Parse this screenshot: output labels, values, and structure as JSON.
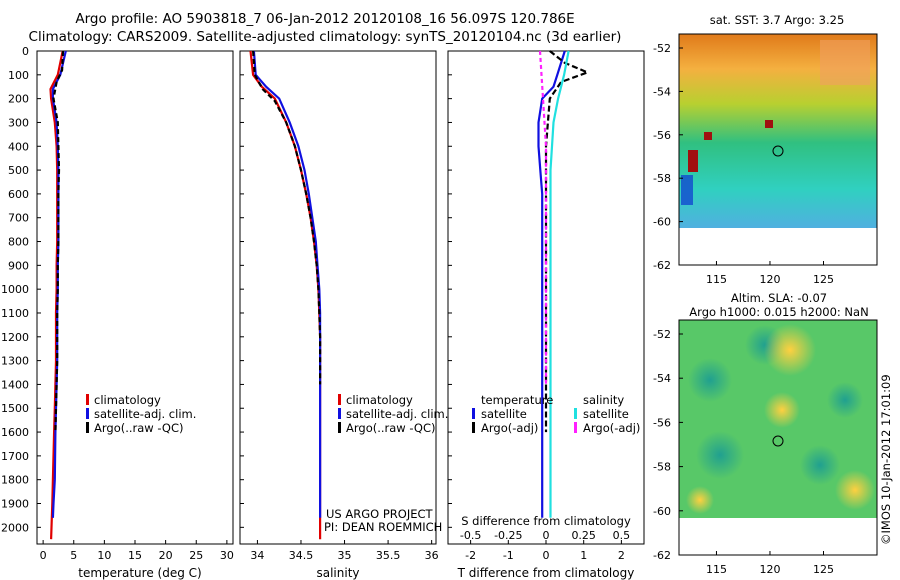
{
  "title_line1": "Argo profile: AO 5903818_7 06-Jan-2012 20120108_16 56.097S 120.786E",
  "title_line2": "Climatology: CARS2009. Satellite-adjusted climatology: synTS_20120104.nc (3d earlier)",
  "panel1": {
    "xlabel": "temperature (deg C)",
    "xticks": [
      "0",
      "5",
      "10",
      "15",
      "20",
      "25",
      "30"
    ],
    "legend": [
      "climatology",
      "satellite-adj. clim.",
      "Argo(..raw -QC)"
    ]
  },
  "panel2": {
    "xlabel": "salinity",
    "xticks": [
      "34",
      "34.5",
      "35",
      "35.5",
      "36"
    ],
    "legend": [
      "climatology",
      "satellite-adj. clim.",
      "Argo(..raw -QC)"
    ],
    "credit_line1": "US ARGO PROJECT",
    "credit_line2": "PI: DEAN ROEMMICH"
  },
  "panel3": {
    "xlabel": "T difference from climatology",
    "xticks": [
      "-2",
      "-1",
      "0",
      "1",
      "2"
    ],
    "top_label": "S difference from climatology",
    "top_ticks": [
      "-0.5",
      "-0.25",
      "0",
      "0.25",
      "0.5"
    ],
    "legend_head_left": "temperature",
    "legend_head_right": "salinity",
    "legend_left": [
      "satellite",
      "Argo(-adj)"
    ],
    "legend_right": [
      "satellite",
      "Argo(-adj)"
    ]
  },
  "yticks": [
    "0",
    "100",
    "200",
    "300",
    "400",
    "500",
    "600",
    "700",
    "800",
    "900",
    "1000",
    "1100",
    "1200",
    "1300",
    "1400",
    "1500",
    "1600",
    "1700",
    "1800",
    "1900",
    "2000"
  ],
  "map1": {
    "title": "sat. SST: 3.7 Argo: 3.25",
    "yticks": [
      "-52",
      "-54",
      "-56",
      "-58",
      "-60",
      "-62"
    ],
    "xticks": [
      "115",
      "120",
      "125"
    ]
  },
  "map2": {
    "title_line1": "Altim. SLA: -0.07",
    "title_line2": "Argo h1000: 0.015 h2000: NaN",
    "yticks": [
      "-52",
      "-54",
      "-56",
      "-58",
      "-60",
      "-62"
    ],
    "xticks": [
      "115",
      "120",
      "125"
    ]
  },
  "side_credit": "©IMOS 10-Jan-2012 17:01:09",
  "colors": {
    "climatology": "#e00000",
    "satellite": "#1010e0",
    "argo": "#000000",
    "salinity_satellite": "#20e0e0",
    "salinity_argo": "#ff20ff"
  },
  "chart_data": [
    {
      "type": "line",
      "xlabel": "temperature (deg C)",
      "ylabel": "",
      "xlim": [
        -1,
        31
      ],
      "ylim": [
        2070,
        0
      ],
      "series": [
        {
          "name": "climatology",
          "x": [
            3.2,
            2.4,
            1.2,
            1.3,
            1.9,
            2.2,
            2.3,
            2.3,
            2.3,
            2.3,
            2.2,
            2.2,
            2.1,
            2.1,
            2.1,
            2.0,
            1.9,
            1.8,
            1.6,
            1.5,
            1.3
          ],
          "y": [
            0,
            100,
            160,
            200,
            300,
            400,
            500,
            600,
            700,
            800,
            900,
            1000,
            1100,
            1200,
            1300,
            1400,
            1500,
            1600,
            1800,
            1900,
            2050
          ]
        },
        {
          "name": "satellite-adj. clim.",
          "x": [
            3.7,
            2.8,
            1.6,
            1.6,
            2.2,
            2.4,
            2.5,
            2.5,
            2.5,
            2.5,
            2.4,
            2.4,
            2.3,
            2.3,
            2.3,
            2.2,
            2.1,
            2.0,
            1.9,
            1.7,
            1.6
          ],
          "y": [
            0,
            100,
            160,
            200,
            300,
            400,
            500,
            600,
            700,
            800,
            900,
            1000,
            1100,
            1200,
            1300,
            1400,
            1500,
            1600,
            1800,
            1900,
            1960
          ]
        },
        {
          "name": "Argo(..raw -QC)",
          "x": [
            3.25,
            3.1,
            2.2,
            1.7,
            2.4,
            2.5,
            2.6,
            2.5,
            2.5,
            2.5,
            2.4,
            2.4,
            2.3,
            2.3,
            2.3,
            2.2,
            2.1,
            2.0
          ],
          "y": [
            0,
            80,
            130,
            200,
            300,
            400,
            500,
            600,
            700,
            800,
            900,
            1000,
            1100,
            1200,
            1300,
            1400,
            1500,
            1600
          ]
        }
      ]
    },
    {
      "type": "line",
      "xlabel": "salinity",
      "ylabel": "",
      "xlim": [
        33.8,
        36.05
      ],
      "ylim": [
        2070,
        0
      ],
      "series": [
        {
          "name": "climatology",
          "x": [
            33.92,
            33.95,
            34.05,
            34.2,
            34.33,
            34.43,
            34.5,
            34.56,
            34.61,
            34.65,
            34.68,
            34.7,
            34.71,
            34.72,
            34.72,
            34.72,
            34.72,
            34.72,
            34.72,
            34.72
          ],
          "y": [
            0,
            100,
            150,
            200,
            300,
            400,
            500,
            600,
            700,
            800,
            900,
            1000,
            1100,
            1200,
            1300,
            1400,
            1500,
            1600,
            1800,
            2050
          ]
        },
        {
          "name": "satellite-adj. clim.",
          "x": [
            33.96,
            33.98,
            34.1,
            34.25,
            34.37,
            34.47,
            34.54,
            34.59,
            34.63,
            34.67,
            34.69,
            34.71,
            34.72,
            34.72,
            34.72,
            34.72,
            34.72,
            34.72,
            34.72,
            34.72
          ],
          "y": [
            0,
            100,
            150,
            200,
            300,
            400,
            500,
            600,
            700,
            800,
            900,
            1000,
            1100,
            1200,
            1300,
            1400,
            1500,
            1600,
            1800,
            1960
          ]
        },
        {
          "name": "Argo(..raw -QC)",
          "x": [
            33.95,
            33.97,
            34.06,
            34.2,
            34.33,
            34.43,
            34.5,
            34.56,
            34.61,
            34.65,
            34.68,
            34.7,
            34.71,
            34.72,
            34.72,
            34.72
          ],
          "y": [
            0,
            100,
            160,
            210,
            300,
            400,
            500,
            600,
            700,
            800,
            900,
            1000,
            1100,
            1200,
            1300,
            1400
          ]
        }
      ]
    },
    {
      "type": "line",
      "xlabel": "T difference from climatology",
      "ylabel": "",
      "xlim": [
        -2.6,
        2.6
      ],
      "ylim": [
        2070,
        0
      ],
      "series": [
        {
          "name": "temperature satellite",
          "x": [
            0.5,
            0.3,
            0.2,
            -0.1,
            -0.2,
            -0.2,
            -0.15,
            -0.1,
            -0.1,
            -0.1,
            -0.1,
            -0.1,
            -0.1,
            -0.1,
            -0.1,
            -0.1,
            -0.1,
            -0.1,
            -0.1,
            -0.1
          ],
          "y": [
            0,
            100,
            150,
            200,
            300,
            400,
            500,
            600,
            700,
            800,
            900,
            1000,
            1100,
            1200,
            1300,
            1400,
            1500,
            1600,
            1800,
            1960
          ]
        },
        {
          "name": "temperature Argo(-adj)",
          "x": [
            0.1,
            0.5,
            1.1,
            0.4,
            0.1,
            0.05,
            0.0,
            0.0,
            0.0,
            0.0,
            0.0,
            0.0,
            0.0,
            0.0,
            0.0,
            0.0
          ],
          "y": [
            0,
            50,
            90,
            130,
            200,
            300,
            400,
            500,
            600,
            700,
            800,
            900,
            1000,
            1100,
            1200,
            1600
          ]
        },
        {
          "name": "salinity satellite",
          "x": [
            0.15,
            0.12,
            0.08,
            0.05,
            0.04,
            0.03,
            0.03,
            0.03,
            0.03,
            0.03,
            0.03,
            0.03,
            0.03
          ],
          "y": [
            0,
            100,
            200,
            300,
            400,
            500,
            600,
            800,
            1000,
            1200,
            1400,
            1600,
            1960
          ]
        },
        {
          "name": "salinity Argo(-adj)",
          "x": [
            -0.04,
            -0.03,
            -0.02,
            -0.01,
            0.0,
            0.0,
            0.0,
            0.0
          ],
          "y": [
            0,
            100,
            200,
            300,
            400,
            600,
            900,
            1400
          ]
        }
      ]
    }
  ]
}
